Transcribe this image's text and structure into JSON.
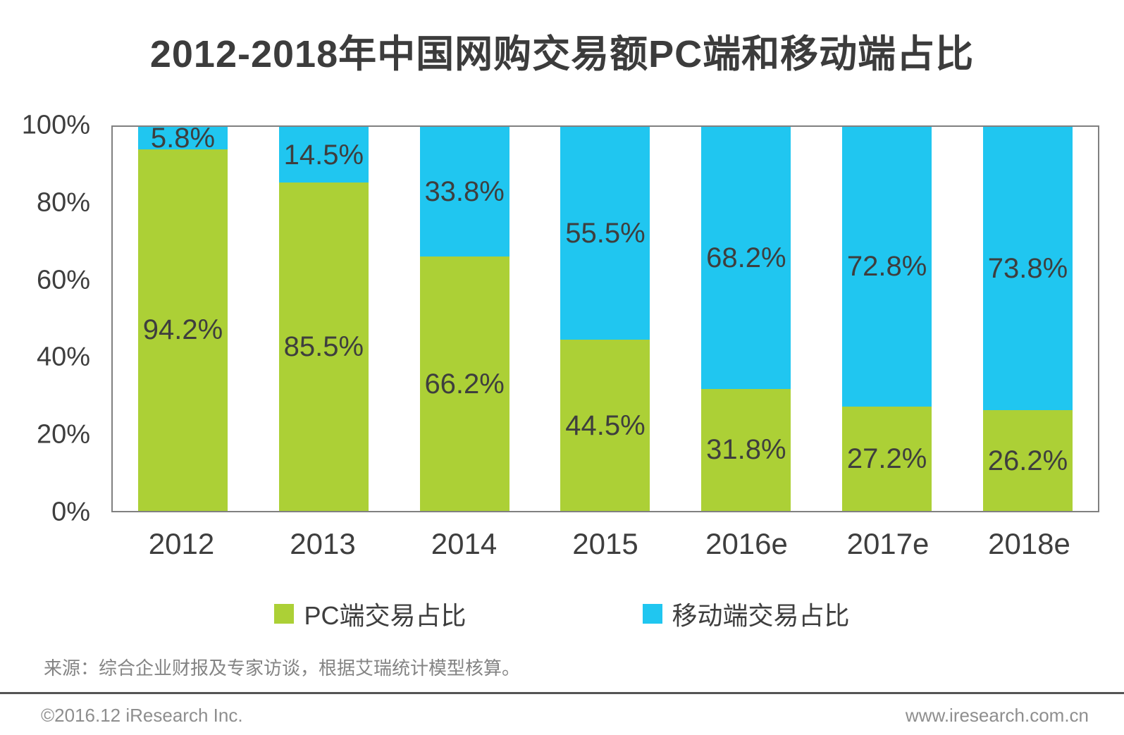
{
  "title": "2012-2018年中国网购交易额PC端和移动端占比",
  "chart_data": {
    "type": "bar",
    "stacked": true,
    "title": "2012-2018年中国网购交易额PC端和移动端占比",
    "categories": [
      "2012",
      "2013",
      "2014",
      "2015",
      "2016e",
      "2017e",
      "2018e"
    ],
    "series": [
      {
        "name": "PC端交易占比",
        "color": "#acd036",
        "values": [
          94.2,
          85.5,
          66.2,
          44.5,
          31.8,
          27.2,
          26.2
        ]
      },
      {
        "name": "移动端交易占比",
        "color": "#20c6f0",
        "values": [
          5.8,
          14.5,
          33.8,
          55.5,
          68.2,
          72.8,
          73.8
        ]
      }
    ],
    "y_ticks": [
      "100%",
      "80%",
      "60%",
      "40%",
      "20%",
      "0%"
    ],
    "ylim": [
      0,
      100
    ],
    "value_suffix": "%",
    "grid": false,
    "legend_position": "bottom",
    "label_color": "#3e3e3e",
    "plot_border_color": "#808080"
  },
  "source_note": "来源：综合企业财报及专家访谈，根据艾瑞统计模型核算。",
  "footer": {
    "copyright": "©2016.12 iResearch Inc.",
    "website": "www.iresearch.com.cn"
  }
}
